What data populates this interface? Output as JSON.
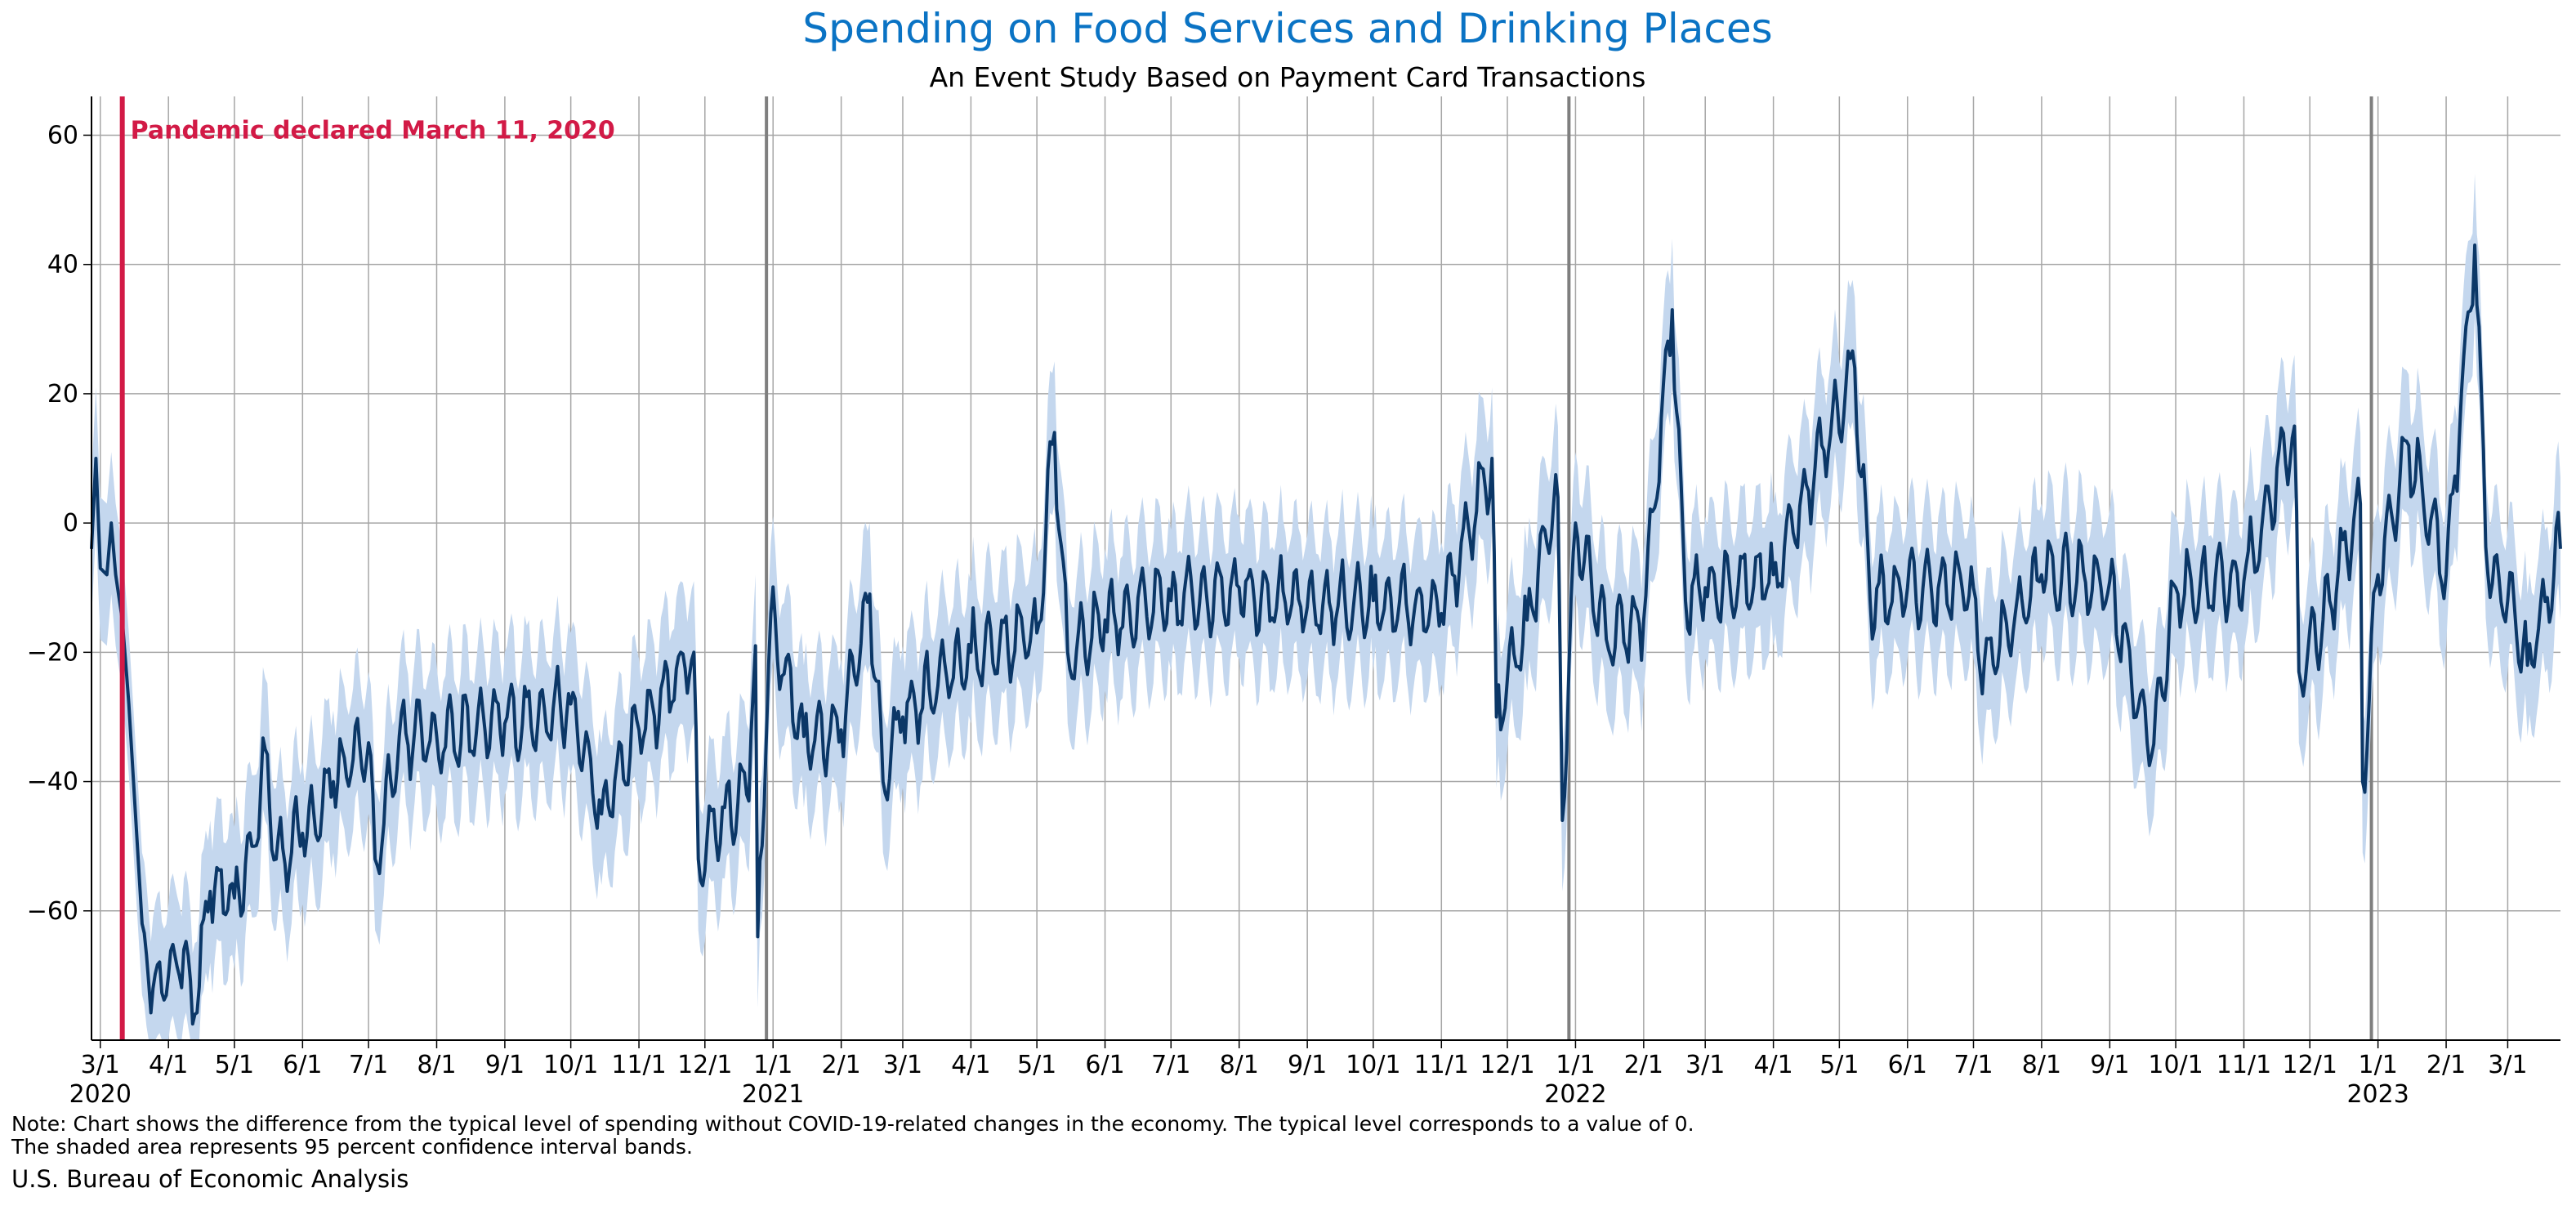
{
  "colors": {
    "title": "#0a73c4",
    "line": "#0b3767",
    "band": "#c4d7ee",
    "event": "#d21a46",
    "grid": "#a6a6a6",
    "year_line": "#7f7f7f"
  },
  "chart_data": {
    "type": "line",
    "title": "Spending on Food Services and Drinking Places",
    "subtitle": "An Event Study Based on Payment Card Transactions",
    "xlabel": "",
    "ylabel": "",
    "x_range": [
      "2020-02-26",
      "2023-03-25"
    ],
    "ylim": [
      -80,
      66
    ],
    "yticks": [
      -60,
      -40,
      -20,
      0,
      20,
      40,
      60
    ],
    "ytick_labels": [
      "−60",
      "−40",
      "−20",
      "0",
      "20",
      "40",
      "60"
    ],
    "grid": true,
    "legend": "none",
    "month_ticks": [
      {
        "date": "2020-03-01",
        "label": "3/1"
      },
      {
        "date": "2020-04-01",
        "label": "4/1"
      },
      {
        "date": "2020-05-01",
        "label": "5/1"
      },
      {
        "date": "2020-06-01",
        "label": "6/1"
      },
      {
        "date": "2020-07-01",
        "label": "7/1"
      },
      {
        "date": "2020-08-01",
        "label": "8/1"
      },
      {
        "date": "2020-09-01",
        "label": "9/1"
      },
      {
        "date": "2020-10-01",
        "label": "10/1"
      },
      {
        "date": "2020-11-01",
        "label": "11/1"
      },
      {
        "date": "2020-12-01",
        "label": "12/1"
      },
      {
        "date": "2021-01-01",
        "label": "1/1"
      },
      {
        "date": "2021-02-01",
        "label": "2/1"
      },
      {
        "date": "2021-03-01",
        "label": "3/1"
      },
      {
        "date": "2021-04-01",
        "label": "4/1"
      },
      {
        "date": "2021-05-01",
        "label": "5/1"
      },
      {
        "date": "2021-06-01",
        "label": "6/1"
      },
      {
        "date": "2021-07-01",
        "label": "7/1"
      },
      {
        "date": "2021-08-01",
        "label": "8/1"
      },
      {
        "date": "2021-09-01",
        "label": "9/1"
      },
      {
        "date": "2021-10-01",
        "label": "10/1"
      },
      {
        "date": "2021-11-01",
        "label": "11/1"
      },
      {
        "date": "2021-12-01",
        "label": "12/1"
      },
      {
        "date": "2022-01-01",
        "label": "1/1"
      },
      {
        "date": "2022-02-01",
        "label": "2/1"
      },
      {
        "date": "2022-03-01",
        "label": "3/1"
      },
      {
        "date": "2022-04-01",
        "label": "4/1"
      },
      {
        "date": "2022-05-01",
        "label": "5/1"
      },
      {
        "date": "2022-06-01",
        "label": "6/1"
      },
      {
        "date": "2022-07-01",
        "label": "7/1"
      },
      {
        "date": "2022-08-01",
        "label": "8/1"
      },
      {
        "date": "2022-09-01",
        "label": "9/1"
      },
      {
        "date": "2022-10-01",
        "label": "10/1"
      },
      {
        "date": "2022-11-01",
        "label": "11/1"
      },
      {
        "date": "2022-12-01",
        "label": "12/1"
      },
      {
        "date": "2023-01-01",
        "label": "1/1"
      },
      {
        "date": "2023-02-01",
        "label": "2/1"
      },
      {
        "date": "2023-03-01",
        "label": "3/1"
      }
    ],
    "year_labels": [
      {
        "date": "2020-03-01",
        "label": "2020"
      },
      {
        "date": "2021-01-01",
        "label": "2021"
      },
      {
        "date": "2022-01-01",
        "label": "2022"
      },
      {
        "date": "2023-01-01",
        "label": "2023"
      }
    ],
    "year_lines": [
      "2020-12-29",
      "2021-12-29",
      "2022-12-29"
    ],
    "event": {
      "date": "2020-03-11",
      "label": "Pandemic declared March 11, 2020"
    },
    "series": [
      {
        "values_approx": "daily estimates with weekly oscillation",
        "points": [
          [
            "2020-02-26",
            -4
          ],
          [
            "2020-02-28",
            10
          ],
          [
            "2020-03-01",
            -7
          ],
          [
            "2020-03-04",
            -8
          ],
          [
            "2020-03-06",
            0
          ],
          [
            "2020-03-08",
            -8
          ],
          [
            "2020-03-11",
            -15
          ],
          [
            "2020-03-14",
            -28
          ],
          [
            "2020-03-17",
            -45
          ],
          [
            "2020-03-20",
            -62
          ],
          [
            "2020-03-25",
            -72
          ],
          [
            "2020-04-01",
            -70
          ],
          [
            "2020-04-08",
            -66
          ],
          [
            "2020-04-13",
            -76
          ],
          [
            "2020-04-20",
            -57
          ],
          [
            "2020-05-01",
            -58
          ],
          [
            "2020-05-10",
            -50
          ],
          [
            "2020-05-15",
            -35
          ],
          [
            "2020-05-20",
            -52
          ],
          [
            "2020-06-01",
            -48
          ],
          [
            "2020-06-15",
            -40
          ],
          [
            "2020-07-01",
            -34
          ],
          [
            "2020-07-04",
            -52
          ],
          [
            "2020-07-15",
            -33
          ],
          [
            "2020-08-01",
            -33
          ],
          [
            "2020-09-01",
            -31
          ],
          [
            "2020-10-01",
            -28
          ],
          [
            "2020-10-15",
            -45
          ],
          [
            "2020-11-01",
            -32
          ],
          [
            "2020-11-26",
            -20
          ],
          [
            "2020-11-28",
            -52
          ],
          [
            "2020-12-10",
            -44
          ],
          [
            "2020-12-20",
            -42
          ],
          [
            "2020-12-24",
            -19
          ],
          [
            "2020-12-25",
            -64
          ],
          [
            "2020-12-31",
            -14
          ],
          [
            "2021-01-15",
            -33
          ],
          [
            "2021-02-01",
            -32
          ],
          [
            "2021-02-14",
            -11
          ],
          [
            "2021-02-20",
            -40
          ],
          [
            "2021-03-01",
            -30
          ],
          [
            "2021-04-01",
            -20
          ],
          [
            "2021-05-01",
            -17
          ],
          [
            "2021-05-09",
            14
          ],
          [
            "2021-05-15",
            -20
          ],
          [
            "2021-06-01",
            -15
          ],
          [
            "2021-07-01",
            -12
          ],
          [
            "2021-08-01",
            -10
          ],
          [
            "2021-09-01",
            -13
          ],
          [
            "2021-10-01",
            -12
          ],
          [
            "2021-11-01",
            -14
          ],
          [
            "2021-11-24",
            10
          ],
          [
            "2021-11-26",
            -30
          ],
          [
            "2021-12-10",
            -15
          ],
          [
            "2021-12-24",
            4
          ],
          [
            "2021-12-26",
            -46
          ],
          [
            "2022-01-01",
            0
          ],
          [
            "2022-01-15",
            -18
          ],
          [
            "2022-02-01",
            -15
          ],
          [
            "2022-02-14",
            33
          ],
          [
            "2022-02-20",
            -12
          ],
          [
            "2022-03-01",
            -10
          ],
          [
            "2022-04-01",
            -8
          ],
          [
            "2022-05-08",
            24
          ],
          [
            "2022-05-15",
            -12
          ],
          [
            "2022-06-01",
            -10
          ],
          [
            "2022-07-01",
            -10
          ],
          [
            "2022-07-04",
            -23
          ],
          [
            "2022-08-01",
            -8
          ],
          [
            "2022-09-01",
            -9
          ],
          [
            "2022-09-20",
            -36
          ],
          [
            "2022-10-01",
            -10
          ],
          [
            "2022-11-01",
            -9
          ],
          [
            "2022-11-24",
            15
          ],
          [
            "2022-11-26",
            -23
          ],
          [
            "2022-12-10",
            -12
          ],
          [
            "2022-12-24",
            3
          ],
          [
            "2022-12-25",
            -40
          ],
          [
            "2023-01-01",
            -8
          ],
          [
            "2023-01-15",
            12
          ],
          [
            "2023-02-01",
            -8
          ],
          [
            "2023-02-14",
            43
          ],
          [
            "2023-02-20",
            -8
          ],
          [
            "2023-03-01",
            -12
          ],
          [
            "2023-03-10",
            -22
          ],
          [
            "2023-03-25",
            -4
          ]
        ]
      }
    ]
  },
  "note_lines": [
    "Note: Chart shows the difference from the typical level of spending without COVID-19-related changes in the economy. The typical level corresponds to a value of 0.",
    "The shaded area represents 95 percent confidence interval bands."
  ],
  "source": "U.S. Bureau of Economic Analysis"
}
